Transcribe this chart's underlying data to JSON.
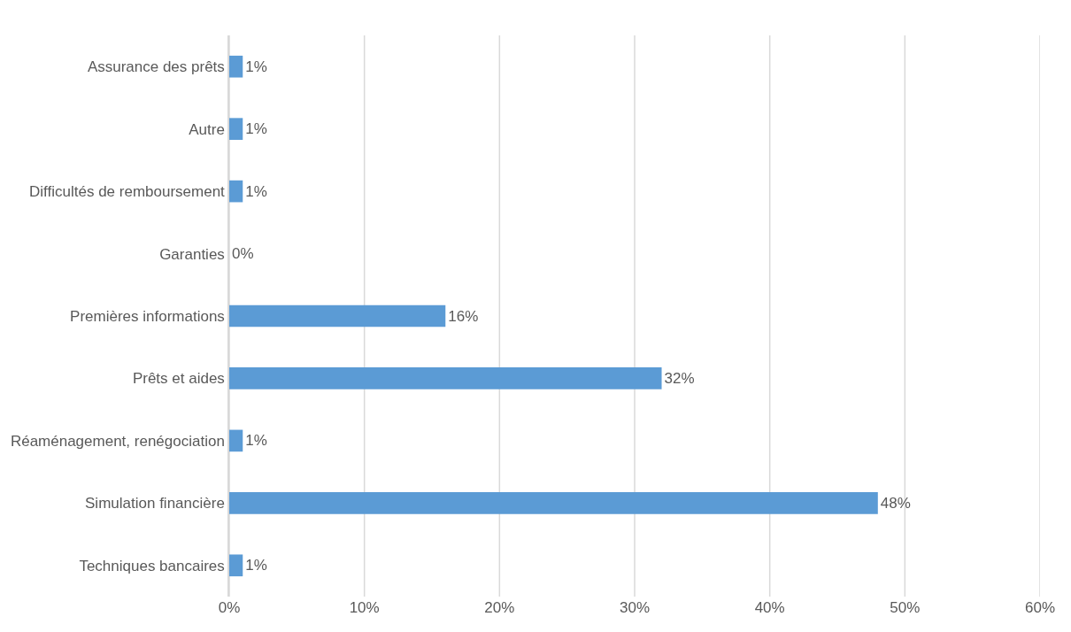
{
  "chart_data": {
    "type": "bar",
    "orientation": "horizontal",
    "categories": [
      "Assurance des prêts",
      "Autre",
      "Difficultés de remboursement",
      "Garanties",
      "Premières informations",
      "Prêts et aides",
      "Réaménagement, renégociation",
      "Simulation financière",
      "Techniques bancaires"
    ],
    "values": [
      1,
      1,
      1,
      0,
      16,
      32,
      1,
      48,
      1
    ],
    "value_labels": [
      "1%",
      "1%",
      "1%",
      "0%",
      "16%",
      "32%",
      "1%",
      "48%",
      "1%"
    ],
    "color": "#5b9bd5",
    "xlim": [
      0,
      60
    ],
    "xticks": [
      {
        "value": 0,
        "label": "0%"
      },
      {
        "value": 10,
        "label": "10%"
      },
      {
        "value": 20,
        "label": "20%"
      },
      {
        "value": 30,
        "label": "30%"
      },
      {
        "value": 40,
        "label": "40%"
      },
      {
        "value": 50,
        "label": "50%"
      },
      {
        "value": 60,
        "label": "60%"
      }
    ],
    "grid": "x",
    "legend": false
  }
}
